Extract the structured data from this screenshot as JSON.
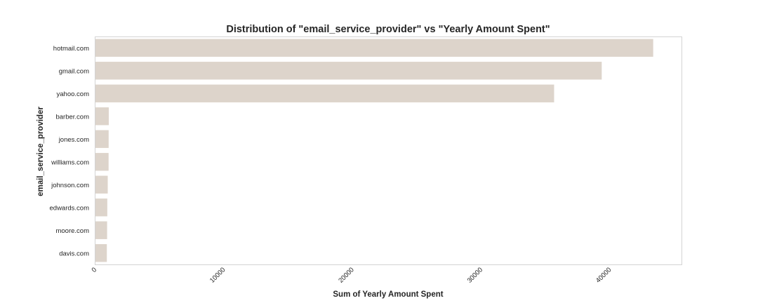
{
  "chart_data": {
    "type": "bar",
    "orientation": "horizontal",
    "title": "Distribution of \"email_service_provider\" vs \"Yearly Amount Spent\"",
    "xlabel": "Sum of Yearly Amount Spent",
    "ylabel": "email_service_provider",
    "categories": [
      "hotmail.com",
      "gmail.com",
      "yahoo.com",
      "barber.com",
      "jones.com",
      "williams.com",
      "johnson.com",
      "edwards.com",
      "moore.com",
      "davis.com"
    ],
    "values": [
      43400,
      39400,
      35700,
      1090,
      1080,
      1075,
      1010,
      975,
      960,
      940
    ],
    "xlim": [
      0,
      45600
    ],
    "xticks": [
      0,
      10000,
      20000,
      30000,
      40000
    ],
    "xtick_labels": [
      "0",
      "10000",
      "20000",
      "30000",
      "40000"
    ],
    "grid": false,
    "bar_color": "#ddd4cb"
  }
}
